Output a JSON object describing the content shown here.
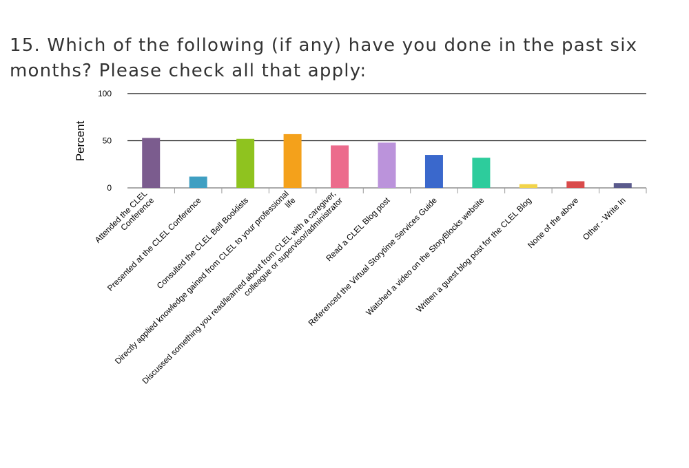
{
  "title": "15. Which of the following (if any) have you done in the past six months? Please check all that apply:",
  "chart_data": {
    "type": "bar",
    "title": "15. Which of the following (if any) have you done in the past six months? Please check all that apply:",
    "xlabel": "",
    "ylabel": "Percent",
    "ylim": [
      0,
      100
    ],
    "yticks": [
      0,
      50,
      100
    ],
    "grid": true,
    "legend": "none",
    "categories": [
      [
        "Attended the CLEL",
        "Conference"
      ],
      [
        "Presented at the CLEL Conference"
      ],
      [
        "Consulted the CLEL Bell Booklists"
      ],
      [
        "Directly applied knowledge gained from CLEL to your professional",
        "life"
      ],
      [
        "Discussed something you read/learned about from CLEL with a caregiver,",
        "colleague or supervisor/administrator"
      ],
      [
        "Read a CLEL Blog post"
      ],
      [
        "Referenced the Virtual Storytime Services Guide"
      ],
      [
        "Watched a video on the StoryBlocks website"
      ],
      [
        "Written a guest blog post for the CLEL Blog"
      ],
      [
        "None of the above"
      ],
      [
        "Other - Write In"
      ]
    ],
    "values": [
      53,
      12,
      52,
      57,
      45,
      48,
      35,
      32,
      4,
      7,
      5
    ],
    "colors": [
      "#7b5c8e",
      "#3f9fc2",
      "#8fc31f",
      "#f4a11b",
      "#ec6b8c",
      "#bb93db",
      "#3a68cc",
      "#2dcc9c",
      "#f2d44a",
      "#d94b4b",
      "#5a5a8c"
    ]
  }
}
